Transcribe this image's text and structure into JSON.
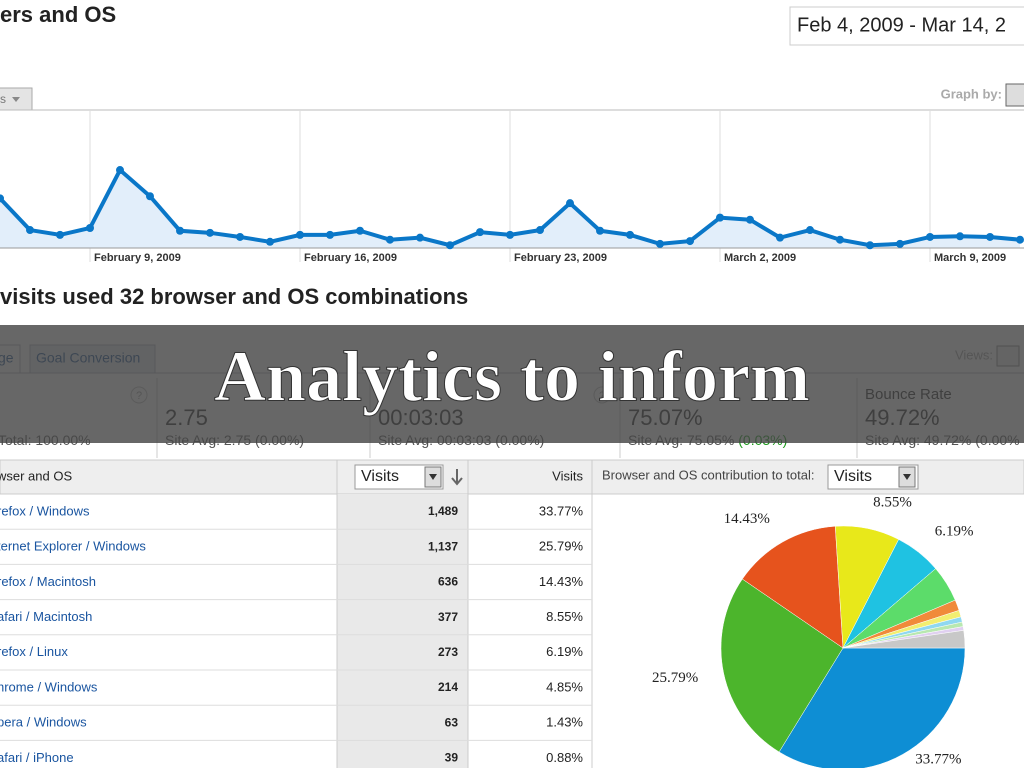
{
  "header": {
    "title": "ers and OS",
    "date_range": "Feb 4, 2009 - Mar 14, 2",
    "segment_menu": "s",
    "graph_by": "Graph by:"
  },
  "line_chart": {
    "type": "line",
    "categories": [
      null,
      null,
      null,
      "February 9, 2009",
      null,
      null,
      null,
      null,
      null,
      null,
      "February 16, 2009",
      null,
      null,
      null,
      null,
      null,
      null,
      "February 23, 2009",
      null,
      null,
      null,
      null,
      null,
      null,
      "March 2, 2009",
      null,
      null,
      null,
      null,
      null,
      null,
      "March 9, 2009",
      null,
      null,
      null
    ],
    "values": [
      72,
      26,
      19,
      29,
      113,
      75,
      25,
      22,
      16,
      9,
      19,
      19,
      25,
      12,
      15,
      4,
      23,
      19,
      26,
      65,
      25,
      19,
      6,
      10,
      44,
      41,
      15,
      26,
      12,
      4,
      6,
      16,
      17,
      16,
      12
    ],
    "color": "#0a77c8",
    "ylim": [
      0,
      200
    ]
  },
  "subtitle": "visits used 32 browser and OS combinations",
  "tabs": [
    "ge",
    "Goal Conversion"
  ],
  "views": "Views:",
  "summary": [
    {
      "help": "?",
      "avg": "Total: 100.00%"
    },
    {
      "value": "2.75",
      "avg": "Site Avg: 2.75 (0.00%)"
    },
    {
      "help": "?",
      "value": "00:03:03",
      "avg": "Site Avg: 00:03:03 (0.00%)"
    },
    {
      "value": "75.07%",
      "avg": "Site Avg: 75.05% ",
      "change": "(0.03%)"
    },
    {
      "label": "Bounce Rate",
      "value": "49.72%",
      "avg": "Site Avg: 49.72% (0.00%"
    }
  ],
  "banner": "Analytics to inform",
  "table": {
    "headers": {
      "name": "wser and OS",
      "visits_menu": "Visits",
      "visits": "Visits",
      "contribution": "Browser and OS contribution to total:",
      "contribution_menu": "Visits"
    },
    "rows": [
      {
        "name": "refox / Windows",
        "visits": "1,489",
        "percent": "33.77%"
      },
      {
        "name": "ternet Explorer / Windows",
        "visits": "1,137",
        "percent": "25.79%"
      },
      {
        "name": "refox / Macintosh",
        "visits": "636",
        "percent": "14.43%"
      },
      {
        "name": "afari / Macintosh",
        "visits": "377",
        "percent": "8.55%"
      },
      {
        "name": "refox / Linux",
        "visits": "273",
        "percent": "6.19%"
      },
      {
        "name": "hrome / Windows",
        "visits": "214",
        "percent": "4.85%"
      },
      {
        "name": "pera / Windows",
        "visits": "63",
        "percent": "1.43%"
      },
      {
        "name": "afari / iPhone",
        "visits": "39",
        "percent": "0.88%"
      }
    ]
  },
  "pie": {
    "type": "pie",
    "values": [
      33.77,
      25.79,
      14.43,
      8.55,
      6.19,
      4.85,
      1.43,
      0.88,
      0.7,
      0.6,
      0.5,
      2.31
    ],
    "colors": [
      "#0e8ed4",
      "#4cb52c",
      "#e6531d",
      "#e8e81a",
      "#1fc2e2",
      "#5cdc6a",
      "#f08a3a",
      "#f2ee70",
      "#8fd8f0",
      "#b8e8b0",
      "#e0d0f0",
      "#c8c8c8"
    ],
    "value_labels": [
      "33.77%",
      "25.79%",
      "14.43%",
      "8.55%",
      "6.19%",
      null,
      null,
      null,
      null,
      null,
      null,
      null
    ]
  }
}
